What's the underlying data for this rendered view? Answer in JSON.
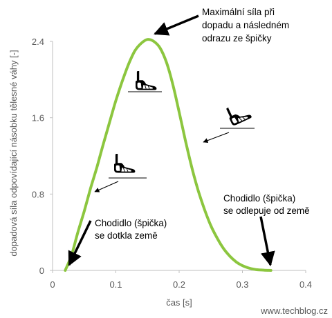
{
  "chart_data": {
    "type": "line",
    "title": "",
    "xlabel": "čas [s]",
    "ylabel": "dopadová síla odpovídající násobku tělesné váhy [-]",
    "xlim": [
      0,
      0.4
    ],
    "ylim": [
      0,
      2.4
    ],
    "xticks": [
      0,
      0.1,
      0.2,
      0.3,
      0.4
    ],
    "xtick_labels": [
      "0",
      "0.1",
      "0.2",
      "0.3",
      "0.4"
    ],
    "yticks": [
      0,
      0.8,
      1.6,
      2.4
    ],
    "ytick_labels": [
      "0",
      "0.8",
      "1.6",
      "2.4"
    ],
    "grid": false,
    "legend": "none",
    "series": [
      {
        "color": "#8cc63f",
        "x": [
          0.02,
          0.03,
          0.04,
          0.05,
          0.06,
          0.07,
          0.08,
          0.09,
          0.1,
          0.11,
          0.12,
          0.13,
          0.14,
          0.15,
          0.16,
          0.17,
          0.18,
          0.19,
          0.2,
          0.21,
          0.22,
          0.23,
          0.24,
          0.25,
          0.26,
          0.27,
          0.28,
          0.29,
          0.3,
          0.31,
          0.32,
          0.33,
          0.345
        ],
        "y": [
          0.0,
          0.16,
          0.4,
          0.62,
          0.86,
          1.08,
          1.32,
          1.55,
          1.78,
          1.98,
          2.16,
          2.3,
          2.38,
          2.42,
          2.4,
          2.33,
          2.18,
          1.95,
          1.66,
          1.36,
          1.08,
          0.84,
          0.64,
          0.47,
          0.34,
          0.23,
          0.15,
          0.09,
          0.05,
          0.025,
          0.01,
          0.004,
          0.0
        ]
      }
    ],
    "annotations": [
      {
        "lines": [
          "Maximální síla při",
          "dopadu a následném",
          "odrazu ze špičky"
        ],
        "x": 0.16,
        "y": 2.42
      },
      {
        "lines": [
          "Chodidlo (špička)",
          "se dotkla země"
        ],
        "x": 0.02,
        "y": 0.0
      },
      {
        "lines": [
          "Chodidlo (špička)",
          "se odlepuje od země"
        ],
        "x": 0.345,
        "y": 0.0
      }
    ],
    "icons": [
      "foot-heel-strike-icon",
      "foot-flat-icon",
      "foot-toe-off-icon"
    ]
  },
  "credit": "www.techblog.cz"
}
